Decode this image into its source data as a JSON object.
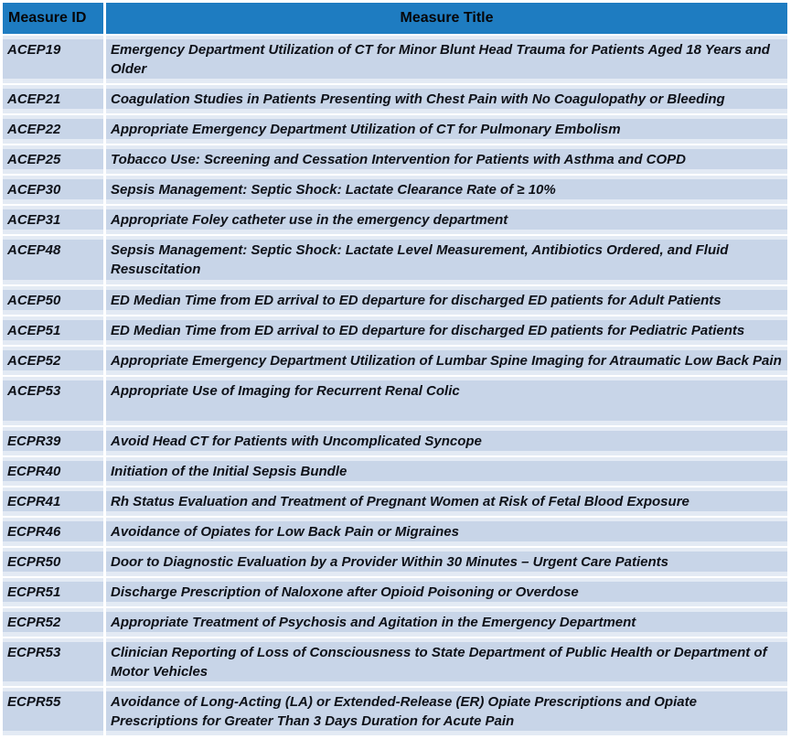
{
  "table": {
    "columns": [
      {
        "label": "Measure ID"
      },
      {
        "label": "Measure Title"
      }
    ],
    "rows": [
      {
        "id": "ACEP19",
        "title": "Emergency Department Utilization of CT for Minor Blunt Head Trauma for Patients Aged 18 Years and Older"
      },
      {
        "id": "ACEP21",
        "title": "Coagulation Studies in Patients Presenting with Chest Pain with No Coagulopathy or Bleeding"
      },
      {
        "id": "ACEP22",
        "title": "Appropriate Emergency Department Utilization of CT for Pulmonary Embolism"
      },
      {
        "id": "ACEP25",
        "title": "Tobacco Use: Screening and Cessation Intervention for Patients with Asthma and COPD"
      },
      {
        "id": "ACEP30",
        "title": "Sepsis Management: Septic Shock: Lactate Clearance Rate of ≥ 10%"
      },
      {
        "id": "ACEP31",
        "title": "Appropriate Foley catheter use in the emergency department"
      },
      {
        "id": "ACEP48",
        "title": "Sepsis Management: Septic Shock: Lactate Level Measurement, Antibiotics Ordered, and Fluid Resuscitation",
        "tall": true
      },
      {
        "id": "ACEP50",
        "title": "ED Median Time from ED arrival to ED departure for discharged ED patients for Adult Patients"
      },
      {
        "id": "ACEP51",
        "title": "ED Median Time from ED arrival to ED departure for discharged ED patients for Pediatric Patients"
      },
      {
        "id": "ACEP52",
        "title": "Appropriate Emergency Department Utilization of Lumbar Spine Imaging for Atraumatic Low Back Pain"
      },
      {
        "id": "ACEP53",
        "title": "Appropriate Use of Imaging for Recurrent Renal Colic",
        "tall": true
      },
      {
        "id": "ECPR39",
        "title": "Avoid Head CT for Patients with Uncomplicated Syncope"
      },
      {
        "id": "ECPR40",
        "title": "Initiation of the Initial Sepsis Bundle"
      },
      {
        "id": "ECPR41",
        "title": "Rh Status Evaluation and Treatment of Pregnant Women at Risk of Fetal Blood Exposure"
      },
      {
        "id": "ECPR46",
        "title": "Avoidance of Opiates for Low Back Pain or Migraines"
      },
      {
        "id": "ECPR50",
        "title": "Door to Diagnostic Evaluation by a Provider Within 30 Minutes – Urgent Care Patients"
      },
      {
        "id": "ECPR51",
        "title": "Discharge Prescription of Naloxone after Opioid Poisoning or Overdose"
      },
      {
        "id": "ECPR52",
        "title": "Appropriate Treatment of Psychosis and Agitation in the Emergency Department"
      },
      {
        "id": "ECPR53",
        "title": "Clinician Reporting of Loss of Consciousness to State Department of Public Health or Department of Motor Vehicles"
      },
      {
        "id": "ECPR55",
        "title": "Avoidance of Long-Acting (LA) or Extended-Release (ER) Opiate Prescriptions and Opiate Prescriptions for Greater Than 3 Days Duration for Acute Pain"
      }
    ]
  },
  "colors": {
    "header_bg": "#1e7cc1",
    "row_band_bg": "#c8d5e8",
    "row_cell_bg": "#e3eaf4",
    "text": "#0e1118",
    "header_text": "#060608"
  }
}
